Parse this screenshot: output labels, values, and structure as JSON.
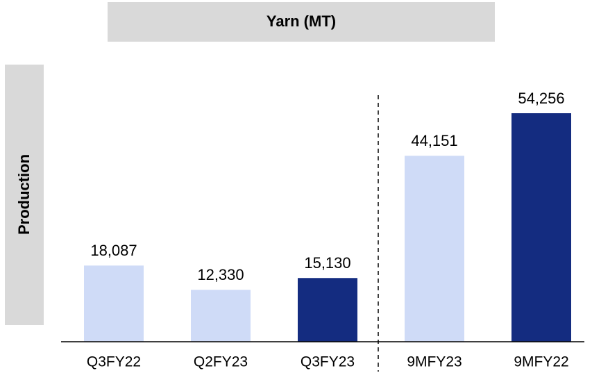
{
  "chart_data": {
    "type": "bar",
    "title": "Yarn (MT)",
    "y_label": "Production",
    "categories": [
      "Q3FY22",
      "Q2FY23",
      "Q3FY23",
      "9MFY23",
      "9MFY22"
    ],
    "values": [
      18087,
      12330,
      15130,
      44151,
      54256
    ],
    "value_labels": [
      "18,087",
      "12,330",
      "15,130",
      "44,151",
      "54,256"
    ],
    "colors": [
      "#cfdbf7",
      "#cfdbf7",
      "#142c80",
      "#cfdbf7",
      "#142c80"
    ]
  }
}
